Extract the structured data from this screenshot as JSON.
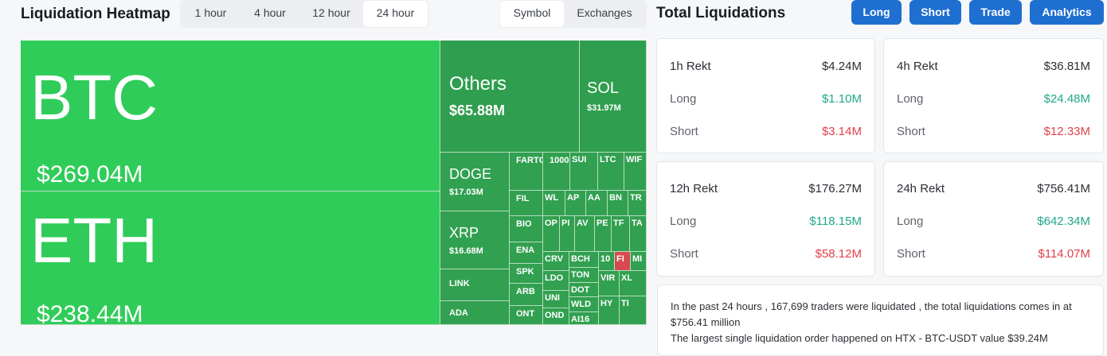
{
  "heatmap": {
    "title": "Liquidation Heatmap",
    "time_tabs": [
      "1 hour",
      "4 hour",
      "12 hour",
      "24 hour"
    ],
    "active_time": "24 hour",
    "group_tabs": [
      "Symbol",
      "Exchanges"
    ],
    "active_group": "Symbol",
    "colors": {
      "bright_green": "#30cc59",
      "green": "#2f9e4f",
      "red": "#d64a50"
    },
    "tiles": {
      "btc": {
        "symbol": "BTC",
        "value": "$269.04M"
      },
      "eth": {
        "symbol": "ETH",
        "value": "$238.44M"
      },
      "others": {
        "symbol": "Others",
        "value": "$65.88M"
      },
      "sol": {
        "symbol": "SOL",
        "value": "$31.97M"
      },
      "doge": {
        "symbol": "DOGE",
        "value": "$17.03M"
      },
      "xrp": {
        "symbol": "XRP",
        "value": "$16.68M"
      },
      "link": {
        "symbol": "LINK"
      },
      "ada": {
        "symbol": "ADA"
      }
    },
    "small_tiles": [
      "FARTC",
      "1000",
      "SUI",
      "LTC",
      "WIF",
      "FIL",
      "WL",
      "AP",
      "AA",
      "BN",
      "TR",
      "BIO",
      "OP",
      "PI",
      "AV",
      "PE",
      "TF",
      "TA",
      "ENA",
      "CRV",
      "BCH",
      "10",
      "FI",
      "MI",
      "SPK",
      "LDO",
      "TON",
      "ARB",
      "UNI",
      "DOT",
      "ONT",
      "OND",
      "WLD",
      "AI16",
      "VIR",
      "XL",
      "HY",
      "TI"
    ]
  },
  "total": {
    "title": "Total Liquidations",
    "buttons": [
      "Long",
      "Short",
      "Trade",
      "Analytics"
    ],
    "button_color": "#1f6fd1",
    "long_color": "#20a88a",
    "short_color": "#e0414b",
    "cards": [
      {
        "label": "1h Rekt",
        "total": "$4.24M",
        "long_label": "Long",
        "long": "$1.10M",
        "short_label": "Short",
        "short": "$3.14M"
      },
      {
        "label": "4h Rekt",
        "total": "$36.81M",
        "long_label": "Long",
        "long": "$24.48M",
        "short_label": "Short",
        "short": "$12.33M"
      },
      {
        "label": "12h Rekt",
        "total": "$176.27M",
        "long_label": "Long",
        "long": "$118.15M",
        "short_label": "Short",
        "short": "$58.12M"
      },
      {
        "label": "24h Rekt",
        "total": "$756.41M",
        "long_label": "Long",
        "long": "$642.34M",
        "short_label": "Short",
        "short": "$114.07M"
      }
    ],
    "summary_line1": "In the past 24 hours , 167,699 traders were liquidated , the total liquidations comes in at $756.41 million",
    "summary_line2": "The largest single liquidation order happened on HTX - BTC-USDT value $39.24M"
  }
}
